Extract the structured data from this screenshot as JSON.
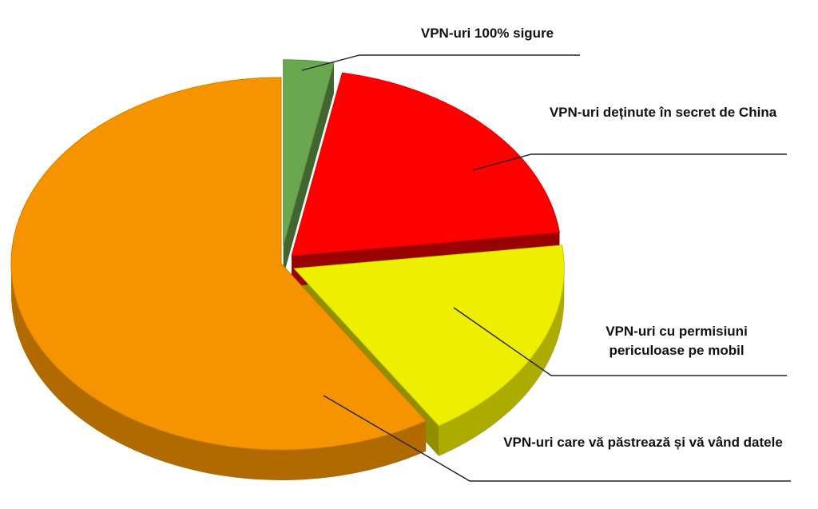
{
  "chart_data": {
    "type": "pie",
    "title": "",
    "slices": [
      {
        "label": "VPN-uri 100% sigure",
        "value": 3,
        "color": "#6aa84f"
      },
      {
        "label": "VPN-uri deținute în secret de China",
        "value": 20,
        "color": "#ff0000"
      },
      {
        "label": "VPN-uri cu permisiuni periculoase pe mobil",
        "value": 18,
        "color": "#eeee00"
      },
      {
        "label": "VPN-uri care vă păstrează și vă vând datele",
        "value": 59,
        "color": "#f59300"
      }
    ],
    "style": "3d-exploded",
    "legend": "none"
  }
}
